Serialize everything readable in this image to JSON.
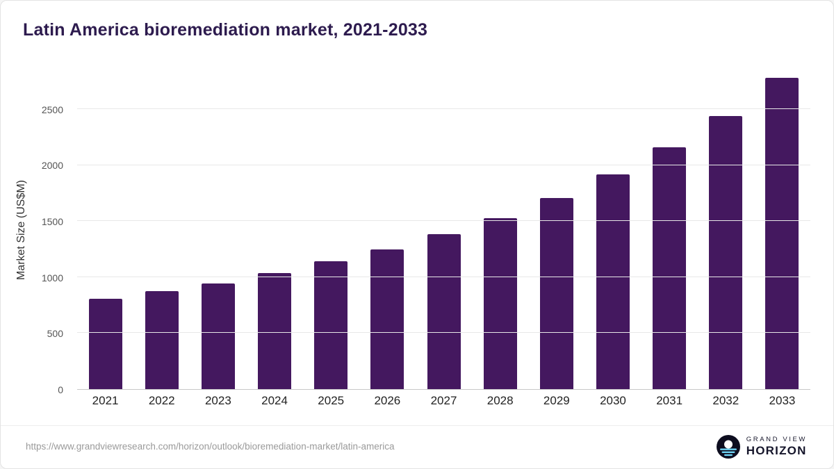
{
  "title": "Latin America bioremediation market, 2021-2033",
  "chart_data": {
    "type": "bar",
    "title": "Latin America bioremediation market, 2021-2033",
    "categories": [
      "2021",
      "2022",
      "2023",
      "2024",
      "2025",
      "2026",
      "2027",
      "2028",
      "2029",
      "2030",
      "2031",
      "2032",
      "2033"
    ],
    "values": [
      805,
      875,
      945,
      1040,
      1140,
      1250,
      1385,
      1530,
      1710,
      1920,
      2160,
      2440,
      2780
    ],
    "xlabel": "",
    "ylabel": "Market Size (US$M)",
    "ylim": [
      0,
      2850
    ],
    "yticks": [
      0,
      500,
      1000,
      1500,
      2000,
      2500
    ],
    "grid": true,
    "legend": "none",
    "bar_color": "#44185f"
  },
  "footer": {
    "source_url": "https://www.grandviewresearch.com/horizon/outlook/bioremediation-market/latin-america",
    "logo": {
      "line1": "GRAND VIEW",
      "line2": "HORIZON"
    }
  },
  "colors": {
    "title": "#2d1b4e",
    "bar": "#44185f",
    "grid": "#e8e8e8",
    "axis": "#c8c8c8",
    "url_text": "#9a9a9a",
    "logo_dark": "#0d0d1f",
    "logo_blue": "#6fd4f5"
  }
}
